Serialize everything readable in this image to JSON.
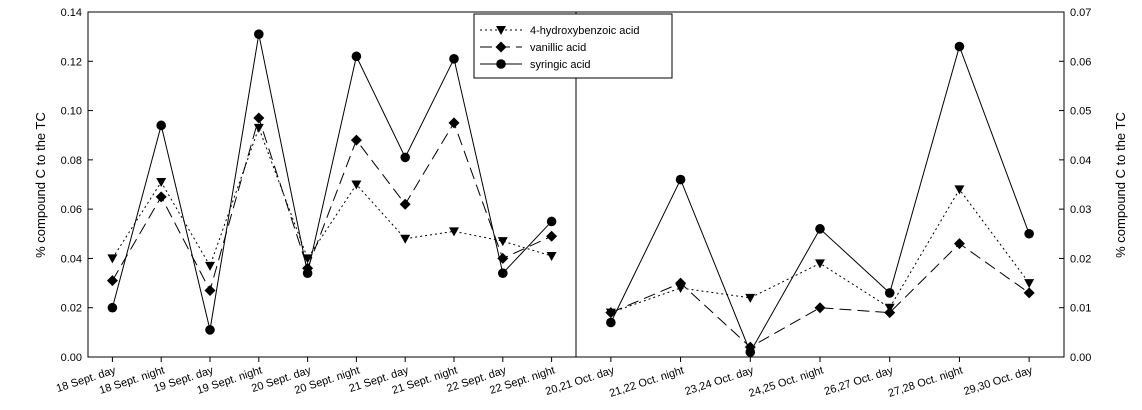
{
  "chart_data": {
    "type": "line",
    "left_panel": {
      "categories": [
        "18 Sept. day",
        "18 Sept. night",
        "19 Sept. day",
        "19 Sept. night",
        "20 Sept. day",
        "20 Sept. night",
        "21 Sept. day",
        "21 Sept. night",
        "22 Sept. day",
        "22 Sept. night"
      ],
      "ylabel": "% compound C to the TC",
      "ylim": [
        0,
        0.14
      ],
      "yticks": [
        "0.00",
        "0.02",
        "0.04",
        "0.06",
        "0.08",
        "0.10",
        "0.12",
        "0.14"
      ],
      "series": [
        {
          "name": "4-hydroxybenzoic acid",
          "values": [
            0.04,
            0.071,
            0.037,
            0.093,
            0.04,
            0.07,
            0.048,
            0.051,
            0.047,
            0.041
          ]
        },
        {
          "name": "vanillic acid",
          "values": [
            0.031,
            0.065,
            0.027,
            0.097,
            0.036,
            0.088,
            0.062,
            0.095,
            0.04,
            0.049
          ]
        },
        {
          "name": "syringic acid",
          "values": [
            0.02,
            0.094,
            0.011,
            0.131,
            0.034,
            0.122,
            0.081,
            0.121,
            0.034,
            0.055
          ]
        }
      ]
    },
    "right_panel": {
      "categories": [
        "20,21 Oct. day",
        "21,22 Oct. night",
        "23,24 Oct. day",
        "24,25 Oct. night",
        "26,27 Oct. day",
        "27,28 Oct. night",
        "29,30 Oct. day"
      ],
      "ylabel": "% compound C to the TC",
      "ylim": [
        0,
        0.07
      ],
      "yticks": [
        "0.00",
        "0.01",
        "0.02",
        "0.03",
        "0.04",
        "0.05",
        "0.06",
        "0.07"
      ],
      "series": [
        {
          "name": "4-hydroxybenzoic acid",
          "values": [
            0.009,
            0.014,
            0.012,
            0.019,
            0.01,
            0.034,
            0.015
          ]
        },
        {
          "name": "vanillic acid",
          "values": [
            0.009,
            0.015,
            0.002,
            0.01,
            0.009,
            0.023,
            0.013
          ]
        },
        {
          "name": "syringic acid",
          "values": [
            0.007,
            0.036,
            0.001,
            0.026,
            0.013,
            0.063,
            0.025
          ]
        }
      ]
    },
    "legend": {
      "position": "top-center",
      "entries": [
        "4-hydroxybenzoic acid",
        "vanillic acid",
        "syringic acid"
      ]
    },
    "grid": false
  }
}
